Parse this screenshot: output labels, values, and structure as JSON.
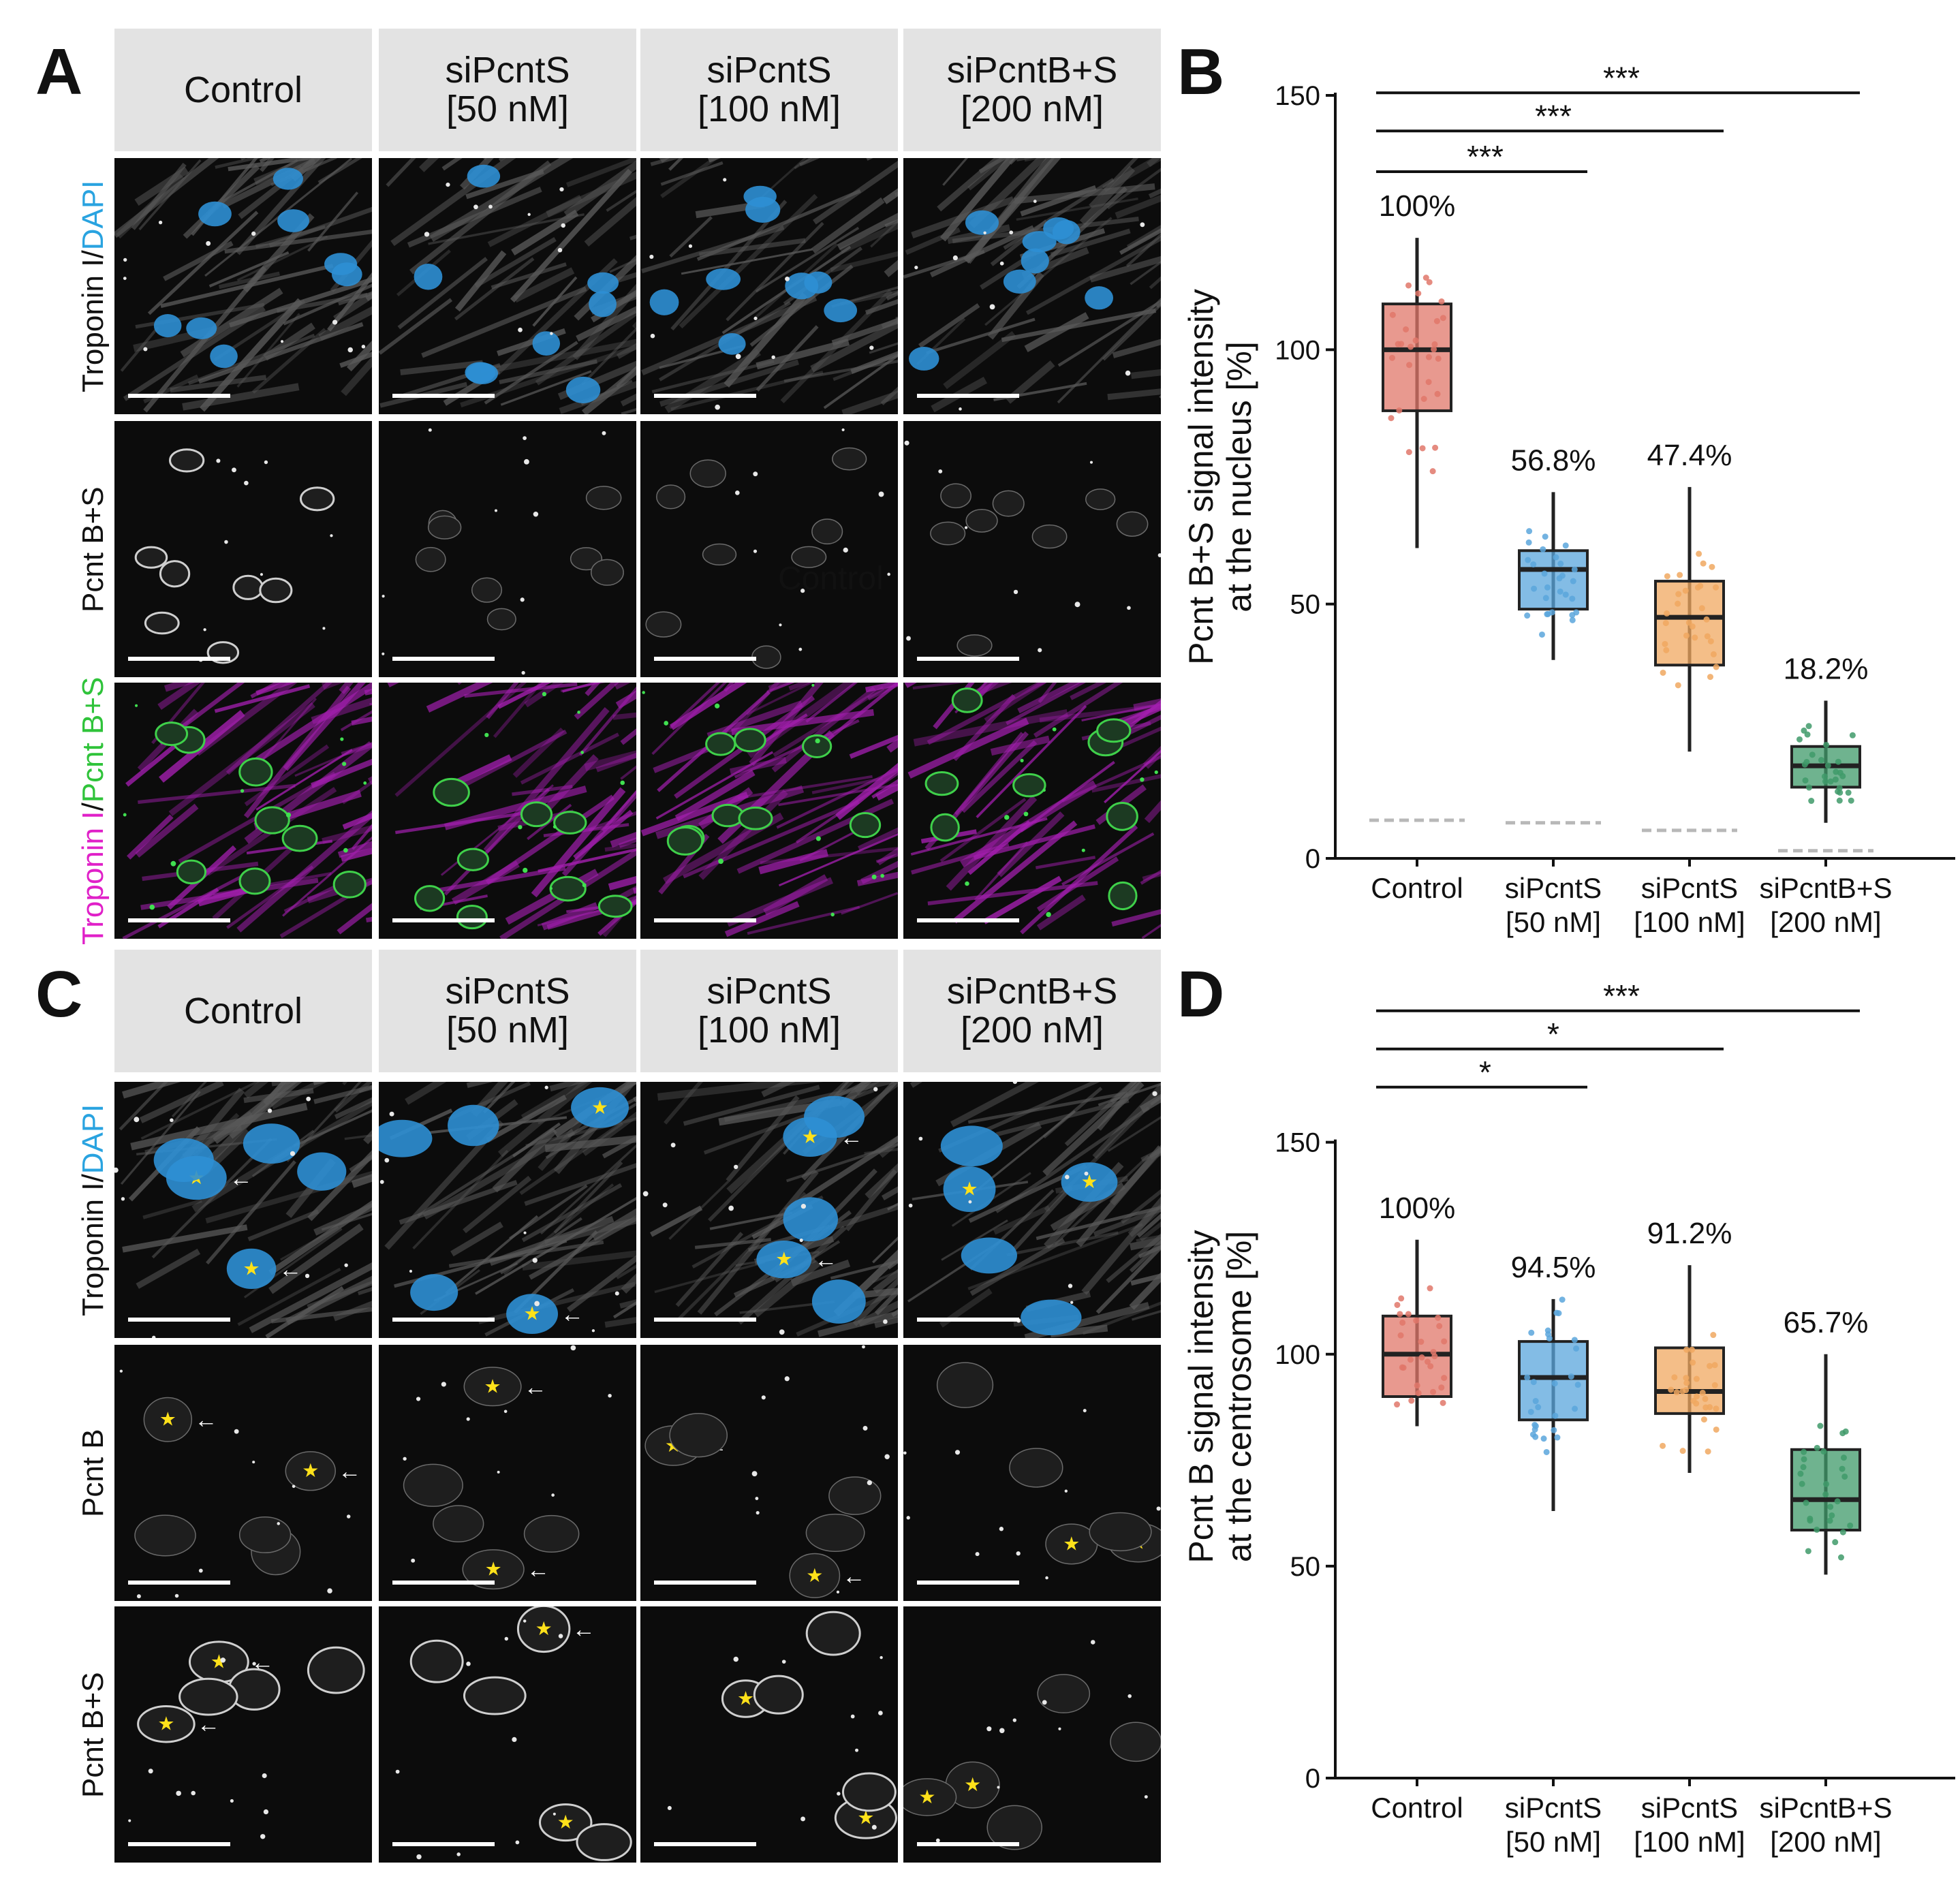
{
  "panels": {
    "A": {
      "letter": "A",
      "headers": [
        "Control",
        "siPcntS\n[50 nM]",
        "siPcntS\n[100 nM]",
        "siPcntB+S\n[200 nM]"
      ],
      "rows": [
        {
          "label_parts": [
            "Troponin I/",
            "DAPI"
          ],
          "label_colors": [
            "#111111",
            "#29a3e0"
          ],
          "style": "gray-blue"
        },
        {
          "label_parts": [
            "Pcnt B+S"
          ],
          "label_colors": [
            "#111111"
          ],
          "style": "gray"
        },
        {
          "label_parts": [
            "Troponin I",
            "/",
            "Pcnt B+S"
          ],
          "label_colors": [
            "#e020c8",
            "#111111",
            "#2fc33a"
          ],
          "style": "magenta-green"
        }
      ],
      "overlay_text": "Control"
    },
    "C": {
      "letter": "C",
      "headers": [
        "Control",
        "siPcntS\n[50 nM]",
        "siPcntS\n[100 nM]",
        "siPcntB+S\n[200 nM]"
      ],
      "rows": [
        {
          "label_parts": [
            "Troponin I/",
            "DAPI"
          ],
          "label_colors": [
            "#111111",
            "#29a3e0"
          ],
          "style": "gray-blue"
        },
        {
          "label_parts": [
            "Pcnt B"
          ],
          "label_colors": [
            "#111111"
          ],
          "style": "gray"
        },
        {
          "label_parts": [
            "Pcnt B+S"
          ],
          "label_colors": [
            "#111111"
          ],
          "style": "gray"
        }
      ]
    },
    "B": {
      "letter": "B"
    },
    "D": {
      "letter": "D"
    }
  },
  "colors": {
    "control": "#e0776a",
    "si50": "#5aa6dc",
    "si100": "#f0a860",
    "si200": "#3f9a6a",
    "star": "#ffe11a",
    "nucleus_blue": "#2e8fd4"
  },
  "chart_data": [
    {
      "type": "box",
      "panel": "B",
      "categories": [
        "Control",
        "siPcntS\n[50 nM]",
        "siPcntS\n[100 nM]",
        "siPcntB+S\n[200 nM]"
      ],
      "ylabel": "Pcnt B+S signal intensity\nat the nucleus [%]",
      "ylim": [
        0,
        150
      ],
      "yticks": [
        0,
        50,
        100,
        150
      ],
      "boxes": [
        {
          "min": 61,
          "q1": 88,
          "median": 100,
          "q3": 109,
          "max": 122,
          "label": "100%"
        },
        {
          "min": 39,
          "q1": 49,
          "median": 56.8,
          "q3": 60.5,
          "max": 72,
          "label": "56.8%"
        },
        {
          "min": 21,
          "q1": 38,
          "median": 47.4,
          "q3": 54.5,
          "max": 73,
          "label": "47.4%"
        },
        {
          "min": 7,
          "q1": 14,
          "median": 18.2,
          "q3": 22,
          "max": 31,
          "label": "18.2%"
        }
      ],
      "background_levels": [
        7.5,
        7.0,
        5.5,
        1.5
      ],
      "significance": [
        {
          "from": 0,
          "to": 1,
          "label": "***",
          "y": 135
        },
        {
          "from": 0,
          "to": 2,
          "label": "***",
          "y": 143
        },
        {
          "from": 0,
          "to": 3,
          "label": "***",
          "y": 150.5
        }
      ]
    },
    {
      "type": "box",
      "panel": "D",
      "categories": [
        "Control",
        "siPcntS\n[50 nM]",
        "siPcntS\n[100 nM]",
        "siPcntB+S\n[200 nM]"
      ],
      "ylabel": "Pcnt B signal intensity\nat the centrosome [%]",
      "ylim": [
        0,
        180
      ],
      "yticks": [
        0,
        50,
        100,
        150
      ],
      "boxes": [
        {
          "min": 83,
          "q1": 90,
          "median": 100,
          "q3": 109,
          "max": 127,
          "label": "100%"
        },
        {
          "min": 63,
          "q1": 84.5,
          "median": 94.5,
          "q3": 103,
          "max": 113,
          "label": "94.5%"
        },
        {
          "min": 72,
          "q1": 86,
          "median": 91.2,
          "q3": 101.5,
          "max": 121,
          "label": "91.2%"
        },
        {
          "min": 48,
          "q1": 58.5,
          "median": 65.7,
          "q3": 77.5,
          "max": 100,
          "label": "65.7%"
        }
      ],
      "significance": [
        {
          "from": 0,
          "to": 1,
          "label": "*",
          "y": 163
        },
        {
          "from": 0,
          "to": 2,
          "label": "*",
          "y": 172
        },
        {
          "from": 0,
          "to": 3,
          "label": "***",
          "y": 181
        }
      ]
    }
  ]
}
